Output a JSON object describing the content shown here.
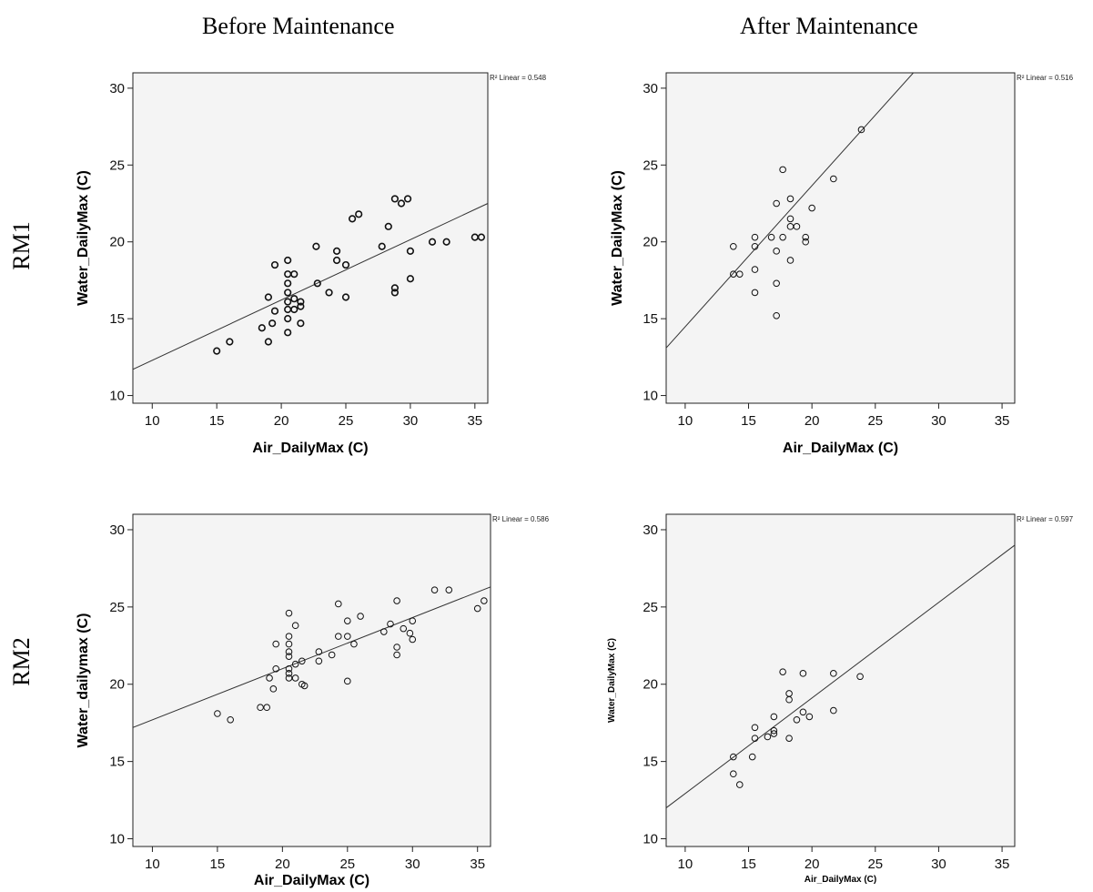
{
  "column_titles": [
    "Before Maintenance",
    "After Maintenance"
  ],
  "row_titles": [
    "RM1",
    "RM2"
  ],
  "chart_data": [
    {
      "type": "scatter",
      "xlabel": "Air_DailyMax (C)",
      "ylabel": "Water_DailyMax (C)",
      "xlim": [
        8.5,
        36
      ],
      "ylim": [
        9.5,
        31
      ],
      "xticks": [
        10,
        15,
        20,
        25,
        30,
        35
      ],
      "yticks": [
        10,
        15,
        20,
        25,
        30
      ],
      "fit_label": "R² Linear = 0.548",
      "fit_line": {
        "x": [
          8.5,
          36
        ],
        "y": [
          11.7,
          22.5
        ]
      },
      "points": [
        [
          15,
          12.9
        ],
        [
          16,
          13.5
        ],
        [
          18.5,
          14.4
        ],
        [
          19,
          13.5
        ],
        [
          19.3,
          14.7
        ],
        [
          19,
          16.4
        ],
        [
          19.5,
          15.5
        ],
        [
          19.5,
          18.5
        ],
        [
          20.5,
          14.1
        ],
        [
          20.5,
          15
        ],
        [
          20.5,
          15.6
        ],
        [
          20.5,
          16.1
        ],
        [
          20.5,
          16.7
        ],
        [
          20.5,
          17.3
        ],
        [
          20.5,
          17.9
        ],
        [
          20.5,
          18.8
        ],
        [
          21,
          15.6
        ],
        [
          21,
          16.3
        ],
        [
          21,
          17.9
        ],
        [
          21.5,
          14.7
        ],
        [
          21.5,
          15.8
        ],
        [
          21.5,
          16.1
        ],
        [
          22.7,
          19.7
        ],
        [
          22.8,
          17.3
        ],
        [
          23.7,
          16.7
        ],
        [
          24.3,
          18.8
        ],
        [
          24.3,
          19.4
        ],
        [
          25,
          18.5
        ],
        [
          25,
          16.4
        ],
        [
          25.5,
          21.5
        ],
        [
          26,
          21.8
        ],
        [
          27.8,
          19.7
        ],
        [
          28.3,
          21
        ],
        [
          28.8,
          16.7
        ],
        [
          28.8,
          17
        ],
        [
          28.8,
          22.8
        ],
        [
          29.3,
          22.5
        ],
        [
          29.8,
          22.8
        ],
        [
          30,
          19.4
        ],
        [
          30,
          17.6
        ],
        [
          31.7,
          20
        ],
        [
          32.8,
          20
        ],
        [
          35,
          20.3
        ],
        [
          35.5,
          20.3
        ]
      ]
    },
    {
      "type": "scatter",
      "xlabel": "Air_DailyMax (C)",
      "ylabel": "Water_DailyMax (C)",
      "xlim": [
        8.5,
        36
      ],
      "ylim": [
        9.5,
        31
      ],
      "xticks": [
        10,
        15,
        20,
        25,
        30,
        35
      ],
      "yticks": [
        10,
        15,
        20,
        25,
        30
      ],
      "fit_label": "R² Linear = 0.516",
      "fit_line": {
        "x": [
          8.5,
          28
        ],
        "y": [
          13.1,
          31
        ]
      },
      "points": [
        [
          13.8,
          17.9
        ],
        [
          13.8,
          19.7
        ],
        [
          14.3,
          17.9
        ],
        [
          15.5,
          16.7
        ],
        [
          15.5,
          18.2
        ],
        [
          15.5,
          19.7
        ],
        [
          15.5,
          20.3
        ],
        [
          16.8,
          20.3
        ],
        [
          17.2,
          15.2
        ],
        [
          17.2,
          17.3
        ],
        [
          17.2,
          19.4
        ],
        [
          17.2,
          22.5
        ],
        [
          17.7,
          24.7
        ],
        [
          17.7,
          20.3
        ],
        [
          18.3,
          18.8
        ],
        [
          18.3,
          21
        ],
        [
          18.3,
          21.5
        ],
        [
          18.3,
          22.8
        ],
        [
          18.8,
          21
        ],
        [
          19.5,
          20
        ],
        [
          19.5,
          20.3
        ],
        [
          20,
          22.2
        ],
        [
          21.7,
          24.1
        ],
        [
          23.9,
          27.3
        ]
      ]
    },
    {
      "type": "scatter",
      "xlabel": "Air_DailyMax (C)",
      "ylabel": "Water_dailymax (C)",
      "xlim": [
        8.5,
        36
      ],
      "ylim": [
        9.5,
        31
      ],
      "xticks": [
        10,
        15,
        20,
        25,
        30,
        35
      ],
      "yticks": [
        10,
        15,
        20,
        25,
        30
      ],
      "fit_label": "R² Linear = 0.586",
      "fit_line": {
        "x": [
          8.5,
          36
        ],
        "y": [
          17.2,
          26.3
        ]
      },
      "points": [
        [
          15,
          18.1
        ],
        [
          16,
          17.7
        ],
        [
          18.3,
          18.5
        ],
        [
          18.8,
          18.5
        ],
        [
          19,
          20.4
        ],
        [
          19.3,
          19.7
        ],
        [
          19.5,
          21
        ],
        [
          19.5,
          22.6
        ],
        [
          20.5,
          20.4
        ],
        [
          20.5,
          20.7
        ],
        [
          20.5,
          21
        ],
        [
          20.5,
          21.8
        ],
        [
          20.5,
          22.1
        ],
        [
          20.5,
          22.6
        ],
        [
          20.5,
          23.1
        ],
        [
          20.5,
          24.6
        ],
        [
          21,
          20.4
        ],
        [
          21,
          21.3
        ],
        [
          21,
          23.8
        ],
        [
          21.5,
          20
        ],
        [
          21.5,
          21.5
        ],
        [
          21.7,
          19.9
        ],
        [
          22.8,
          21.5
        ],
        [
          22.8,
          22.1
        ],
        [
          23.8,
          21.9
        ],
        [
          24.3,
          23.1
        ],
        [
          24.3,
          25.2
        ],
        [
          25,
          20.2
        ],
        [
          25,
          23.1
        ],
        [
          25,
          24.1
        ],
        [
          25.5,
          22.6
        ],
        [
          26,
          24.4
        ],
        [
          27.8,
          23.4
        ],
        [
          28.3,
          23.9
        ],
        [
          28.8,
          21.9
        ],
        [
          28.8,
          22.4
        ],
        [
          28.8,
          25.4
        ],
        [
          29.3,
          23.6
        ],
        [
          29.8,
          23.3
        ],
        [
          30,
          22.9
        ],
        [
          30,
          24.1
        ],
        [
          31.7,
          26.1
        ],
        [
          32.8,
          26.1
        ],
        [
          35,
          24.9
        ],
        [
          35.5,
          25.4
        ]
      ]
    },
    {
      "type": "scatter",
      "xlabel": "Air_DailyMax (C)",
      "ylabel": "Water_DailyMax (C)",
      "xlim": [
        8.5,
        36
      ],
      "ylim": [
        9.5,
        31
      ],
      "xticks": [
        10,
        15,
        20,
        25,
        30,
        35
      ],
      "yticks": [
        10,
        15,
        20,
        25,
        30
      ],
      "fit_label": "R² Linear = 0.597",
      "fit_line": {
        "x": [
          8.5,
          36
        ],
        "y": [
          12.0,
          29.0
        ]
      },
      "points": [
        [
          13.8,
          15.3
        ],
        [
          13.8,
          14.2
        ],
        [
          14.3,
          13.5
        ],
        [
          15.3,
          15.3
        ],
        [
          15.5,
          16.5
        ],
        [
          15.5,
          17.2
        ],
        [
          16.5,
          16.6
        ],
        [
          17,
          17
        ],
        [
          17,
          16.8
        ],
        [
          17,
          17.9
        ],
        [
          17.7,
          20.8
        ],
        [
          18.2,
          16.5
        ],
        [
          18.2,
          19
        ],
        [
          18.2,
          19.4
        ],
        [
          18.8,
          17.7
        ],
        [
          19.3,
          18.2
        ],
        [
          19.3,
          20.7
        ],
        [
          19.8,
          17.9
        ],
        [
          21.7,
          20.7
        ],
        [
          21.7,
          18.3
        ],
        [
          23.8,
          20.5
        ]
      ]
    }
  ]
}
